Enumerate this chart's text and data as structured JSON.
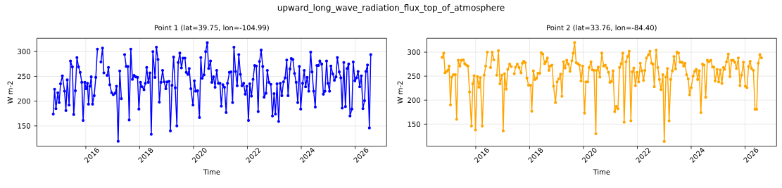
{
  "chart_data": [
    {
      "type": "line",
      "title": "Point 1 (lat=39.75, lon=-104.99)",
      "xlabel": "Time",
      "ylabel": "W m-2",
      "annotations": [
        "upward_long_wave_radiation_flux_top_of_atmosphere"
      ],
      "color": "#0000ff",
      "marker": "circle",
      "grid": true,
      "xlim": [
        2014.18,
        2027.17
      ],
      "ylim": [
        109,
        327
      ],
      "xticks": [
        2016,
        2018,
        2020,
        2022,
        2024,
        2026
      ],
      "yticks": [
        150,
        200,
        250,
        300
      ],
      "x": [
        2014.79,
        2014.84,
        2014.89,
        2014.96,
        2015.01,
        2015.06,
        2015.13,
        2015.21,
        2015.26,
        2015.31,
        2015.38,
        2015.43,
        2015.5,
        2015.55,
        2015.61,
        2015.67,
        2015.73,
        2015.79,
        2015.85,
        2015.9,
        2015.96,
        2016.01,
        2016.06,
        2016.1,
        2016.15,
        2016.2,
        2016.25,
        2016.31,
        2016.37,
        2016.43,
        2016.5,
        2016.56,
        2016.62,
        2016.67,
        2016.73,
        2016.79,
        2016.84,
        2016.89,
        2016.96,
        2017.02,
        2017.09,
        2017.14,
        2017.2,
        2017.26,
        2017.32,
        2017.38,
        2017.44,
        2017.5,
        2017.56,
        2017.61,
        2017.67,
        2017.73,
        2017.79,
        2017.85,
        2017.92,
        2017.97,
        2018.03,
        2018.09,
        2018.16,
        2018.21,
        2018.26,
        2018.32,
        2018.38,
        2018.43,
        2018.49,
        2018.57,
        2018.62,
        2018.68,
        2018.73,
        2018.79,
        2018.85,
        2018.91,
        2018.97,
        2019.02,
        2019.09,
        2019.14,
        2019.2,
        2019.26,
        2019.32,
        2019.38,
        2019.43,
        2019.49,
        2019.55,
        2019.61,
        2019.68,
        2019.73,
        2019.79,
        2019.84,
        2019.9,
        2019.98,
        2020.03,
        2020.08,
        2020.15,
        2020.22,
        2020.27,
        2020.32,
        2020.39,
        2020.45,
        2020.51,
        2020.56,
        2020.63,
        2020.68,
        2020.74,
        2020.8,
        2020.86,
        2020.92,
        2020.98,
        2021.03,
        2021.09,
        2021.15,
        2021.21,
        2021.26,
        2021.33,
        2021.39,
        2021.45,
        2021.5,
        2021.56,
        2021.62,
        2021.68,
        2021.74,
        2021.8,
        2021.86,
        2021.92,
        2021.98,
        2022.04,
        2022.09,
        2022.15,
        2022.21,
        2022.27,
        2022.33,
        2022.4,
        2022.45,
        2022.51,
        2022.57,
        2022.62,
        2022.69,
        2022.74,
        2022.8,
        2022.87,
        2022.93,
        2022.99,
        2023.04,
        2023.1,
        2023.16,
        2023.22,
        2023.28,
        2023.34,
        2023.4,
        2023.46,
        2023.51,
        2023.58,
        2023.63,
        2023.69,
        2023.75,
        2023.81,
        2023.87,
        2023.93,
        2023.98,
        2024.05,
        2024.11,
        2024.16,
        2024.22,
        2024.28,
        2024.35,
        2024.4,
        2024.46,
        2024.52,
        2024.58,
        2024.64,
        2024.69,
        2024.76,
        2024.82,
        2024.88,
        2024.94,
        2024.99,
        2025.05,
        2025.1,
        2025.17,
        2025.23,
        2025.29,
        2025.34,
        2025.41,
        2025.47,
        2025.52,
        2025.58,
        2025.64,
        2025.7,
        2025.76,
        2025.81,
        2025.88,
        2025.93,
        2025.99,
        2026.05,
        2026.11,
        2026.17,
        2026.23,
        2026.29,
        2026.35,
        2026.4,
        2026.46,
        2026.53,
        2026.58
      ],
      "values": [
        174,
        224,
        185,
        217,
        197,
        235,
        251,
        220,
        181,
        243,
        192,
        281,
        269,
        173,
        221,
        288,
        269,
        258,
        238,
        161,
        238,
        225,
        236,
        194,
        230,
        249,
        194,
        211,
        248,
        305,
        null,
        279,
        307,
        257,
        null,
        252,
        268,
        233,
        217,
        213,
        216,
        230,
        119,
        261,
        205,
        null,
        294,
        270,
        270,
        162,
        305,
        244,
        252,
        249,
        248,
        184,
        238,
        229,
        223,
        236,
        268,
        238,
        257,
        133,
        300,
        248,
        309,
        284,
        198,
        238,
        262,
        239,
        225,
        239,
        240,
        140,
        232,
        289,
        227,
        150,
        278,
        297,
        267,
        287,
        287,
        258,
        254,
        266,
        225,
        192,
        241,
        220,
        221,
        167,
        288,
        246,
        253,
        300,
        318,
        266,
        281,
        238,
        249,
        228,
        262,
        236,
        236,
        190,
        233,
        228,
        177,
        236,
        258,
        259,
        197,
        309,
        260,
        231,
        294,
        254,
        231,
        236,
        214,
        230,
        161,
        235,
        210,
        244,
        272,
        271,
        179,
        280,
        303,
        270,
        208,
        216,
        262,
        238,
        234,
        170,
        215,
        174,
        235,
        159,
        236,
        211,
        239,
        247,
        283,
        211,
        265,
        286,
        284,
        256,
        238,
        197,
        270,
        184,
        236,
        262,
        229,
        248,
        220,
        299,
        259,
        220,
        188,
        272,
        272,
        281,
        275,
        214,
        220,
        281,
        236,
        220,
        271,
        255,
        242,
        249,
        288,
        259,
        247,
        186,
        278,
        189,
        266,
        275,
        170,
        184,
        279,
        241,
        247,
        260,
        229,
        251,
        185,
        201,
        260,
        273,
        146,
        294
      ]
    },
    {
      "type": "line",
      "title": "Point 2 (lat=33.76, lon=-84.40)",
      "xlabel": "Time",
      "ylabel": "W m-2",
      "color": "#ffa500",
      "marker": "circle",
      "grid": true,
      "xlim": [
        2014.18,
        2027.17
      ],
      "ylim": [
        104,
        329
      ],
      "xticks": [
        2016,
        2018,
        2020,
        2022,
        2024,
        2026
      ],
      "yticks": [
        150,
        200,
        250,
        300
      ],
      "x": [
        2014.75,
        2014.81,
        2014.86,
        2014.93,
        2014.98,
        2015.01,
        2015.06,
        2015.11,
        2015.17,
        2015.24,
        2015.29,
        2015.35,
        2015.41,
        2015.47,
        2015.54,
        2015.59,
        2015.65,
        2015.71,
        2015.77,
        2015.84,
        2015.89,
        2015.94,
        2015.99,
        2016.06,
        2016.12,
        2016.17,
        2016.24,
        2016.31,
        2016.37,
        2016.43,
        2016.5,
        2016.55,
        2016.61,
        2016.67,
        2016.73,
        2016.78,
        2016.84,
        2016.9,
        2016.97,
        2017.02,
        2017.07,
        2017.13,
        2017.19,
        2017.26,
        2017.32,
        2017.38,
        2017.43,
        2017.48,
        2017.54,
        2017.61,
        2017.68,
        2017.73,
        2017.78,
        2017.84,
        2017.9,
        2017.96,
        2018.04,
        2018.08,
        2018.14,
        2018.2,
        2018.26,
        2018.31,
        2018.38,
        2018.43,
        2018.49,
        2018.56,
        2018.6,
        2018.66,
        2018.72,
        2018.77,
        2018.83,
        2018.89,
        2018.96,
        2019.02,
        2019.08,
        2019.15,
        2019.2,
        2019.26,
        2019.32,
        2019.38,
        2019.44,
        2019.5,
        2019.57,
        2019.62,
        2019.67,
        2019.73,
        2019.79,
        2019.85,
        2019.91,
        2019.97,
        2020.04,
        2020.09,
        2020.16,
        2020.21,
        2020.28,
        2020.33,
        2020.39,
        2020.46,
        2020.49,
        2020.55,
        2020.61,
        2020.68,
        2020.75,
        2020.81,
        2020.87,
        2020.93,
        2020.98,
        2021.04,
        2021.1,
        2021.16,
        2021.22,
        2021.28,
        2021.34,
        2021.4,
        2021.46,
        2021.51,
        2021.58,
        2021.64,
        2021.7,
        2021.76,
        2021.81,
        2021.87,
        2021.93,
        2021.99,
        2022.05,
        2022.11,
        2022.17,
        2022.23,
        2022.28,
        2022.34,
        2022.41,
        2022.47,
        2022.53,
        2022.58,
        2022.63,
        2022.7,
        2022.76,
        2022.82,
        2022.88,
        2022.95,
        2023.0,
        2023.06,
        2023.12,
        2023.18,
        2023.24,
        2023.3,
        2023.36,
        2023.42,
        2023.47,
        2023.53,
        2023.59,
        2023.66,
        2023.72,
        2023.77,
        2023.83,
        2023.89,
        2023.94,
        2024.0,
        2024.07,
        2024.13,
        2024.19,
        2024.24,
        2024.3,
        2024.36,
        2024.42,
        2024.48,
        2024.54,
        2024.6,
        2024.66,
        2024.73,
        2024.79,
        2024.84,
        2024.89,
        2024.96,
        2025.02,
        2025.08,
        2025.14,
        2025.2,
        2025.24,
        2025.31,
        2025.38,
        2025.44,
        2025.5,
        2025.56,
        2025.62,
        2025.68,
        2025.75,
        2025.81,
        2025.87,
        2025.94,
        2026.01,
        2026.07,
        2026.13,
        2026.19,
        2026.24,
        2026.31,
        2026.37,
        2026.43,
        2026.49,
        2026.55,
        2026.61
      ],
      "values": [
        289,
        298,
        257,
        260,
        263,
        271,
        190,
        248,
        253,
        253,
        160,
        283,
        271,
        283,
        284,
        276,
        273,
        271,
        217,
        146,
        234,
        251,
        138,
        249,
        227,
        247,
        146,
        252,
        271,
        300,
        null,
        268,
        300,
        284,
        null,
        252,
        303,
        234,
        252,
        136,
        255,
        223,
        264,
        275,
        270,
        null,
        255,
        269,
        275,
        268,
        257,
        277,
        281,
        278,
        246,
        231,
        231,
        177,
        261,
        243,
        246,
        256,
        256,
        299,
        296,
        276,
        280,
        288,
        262,
        271,
        273,
        229,
        195,
        238,
        244,
        254,
        208,
        280,
        267,
        283,
        275,
        260,
        282,
        298,
        320,
        278,
        276,
        273,
        240,
        271,
        173,
        238,
        238,
        268,
        280,
        263,
        262,
        130,
        262,
        269,
        248,
        298,
        271,
        273,
        267,
        258,
        237,
        239,
        261,
        176,
        187,
        182,
        268,
        276,
        298,
        154,
        280,
        291,
        302,
        157,
        259,
        267,
        230,
        258,
        238,
        277,
        261,
        241,
        262,
        288,
        294,
        302,
        277,
        275,
        228,
        304,
        268,
        243,
        222,
        253,
        114,
        248,
        266,
        157,
        243,
        261,
        291,
        265,
        300,
        298,
        279,
        279,
        271,
        277,
        253,
        244,
        211,
        226,
        250,
        260,
        264,
        243,
        261,
        174,
        275,
        273,
        206,
        283,
        280,
        283,
        269,
        269,
        240,
        264,
        238,
        263,
        235,
        268,
        264,
        280,
        296,
        249,
        283,
        283,
        279,
        266,
        288,
        230,
        252,
        279,
        229,
        226,
        270,
        281,
        266,
        262,
        181,
        181,
        277,
        295,
        288
      ]
    }
  ]
}
